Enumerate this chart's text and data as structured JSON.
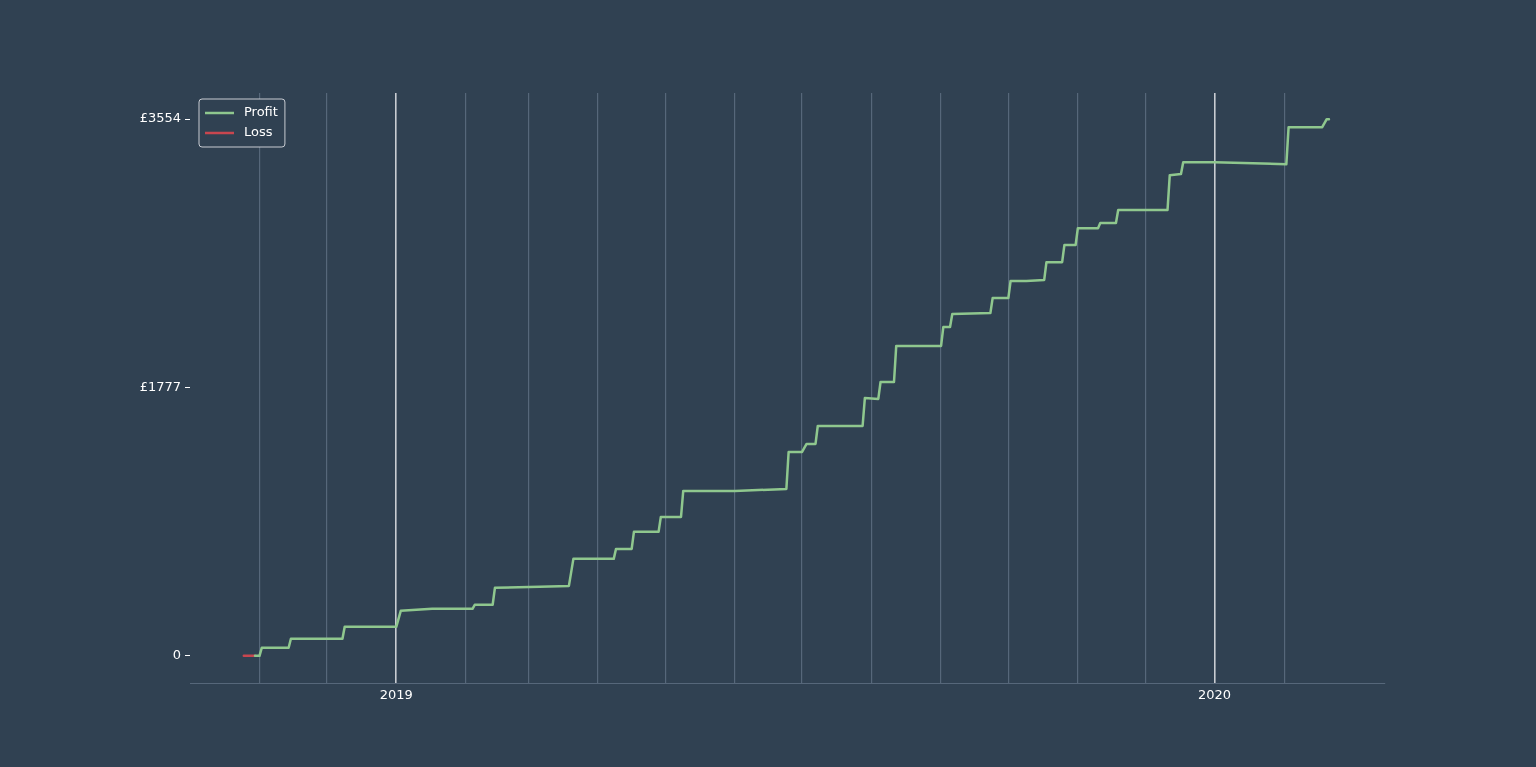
{
  "chart_data": {
    "type": "line",
    "xlim": [
      "2018-10-01",
      "2020-03-17"
    ],
    "xticks": [
      {
        "value": "2018-11-01",
        "label": null
      },
      {
        "value": "2018-12-01",
        "label": null
      },
      {
        "value": "2019-01-01",
        "label": "2019"
      },
      {
        "value": "2019-02-01",
        "label": null
      },
      {
        "value": "2019-03-01",
        "label": null
      },
      {
        "value": "2019-04-01",
        "label": null
      },
      {
        "value": "2019-05-01",
        "label": null
      },
      {
        "value": "2019-06-01",
        "label": null
      },
      {
        "value": "2019-07-01",
        "label": null
      },
      {
        "value": "2019-08-01",
        "label": null
      },
      {
        "value": "2019-09-01",
        "label": null
      },
      {
        "value": "2019-10-01",
        "label": null
      },
      {
        "value": "2019-11-01",
        "label": null
      },
      {
        "value": "2019-12-01",
        "label": null
      },
      {
        "value": "2020-01-01",
        "label": "2020"
      },
      {
        "value": "2020-02-01",
        "label": null
      }
    ],
    "ylim": [
      -180,
      3727
    ],
    "yticks": [
      {
        "value": 0,
        "label": "0"
      },
      {
        "value": 1777,
        "label": "£1777"
      },
      {
        "value": 3554,
        "label": "£3554"
      }
    ],
    "grid": "x",
    "legend": "top left",
    "marker": "none",
    "line_style": "solid",
    "series": [
      {
        "name": "Profit",
        "color": "#8fc78e",
        "x": [
          "2018-10-30",
          "2018-11-01",
          "2018-11-02",
          "2018-11-14",
          "2018-11-15",
          "2018-12-08",
          "2018-12-09",
          "2019-01-01",
          "2019-01-03",
          "2019-01-17",
          "2019-02-04",
          "2019-02-05",
          "2019-02-13",
          "2019-02-14",
          "2019-03-06",
          "2019-03-19",
          "2019-03-21",
          "2019-04-08",
          "2019-04-09",
          "2019-04-16",
          "2019-04-17",
          "2019-04-28",
          "2019-04-29",
          "2019-05-08",
          "2019-05-09",
          "2019-06-01",
          "2019-06-24",
          "2019-06-25",
          "2019-07-01",
          "2019-07-03",
          "2019-07-07",
          "2019-07-08",
          "2019-07-28",
          "2019-07-29",
          "2019-08-04",
          "2019-08-05",
          "2019-08-11",
          "2019-08-12",
          "2019-09-01",
          "2019-09-02",
          "2019-09-05",
          "2019-09-06",
          "2019-09-23",
          "2019-09-24",
          "2019-10-01",
          "2019-10-02",
          "2019-10-09",
          "2019-10-17",
          "2019-10-18",
          "2019-10-25",
          "2019-10-26",
          "2019-10-31",
          "2019-11-01",
          "2019-11-10",
          "2019-11-11",
          "2019-11-18",
          "2019-11-19",
          "2019-12-11",
          "2019-12-12",
          "2019-12-17",
          "2019-12-18",
          "2020-01-01",
          "2020-02-02",
          "2020-02-03",
          "2020-02-18",
          "2020-02-20",
          "2020-02-21"
        ],
        "values": [
          0,
          0,
          53,
          53,
          113,
          113,
          192,
          192,
          298,
          311,
          311,
          338,
          338,
          450,
          457,
          463,
          642,
          642,
          708,
          708,
          821,
          821,
          920,
          920,
          1092,
          1092,
          1105,
          1350,
          1350,
          1403,
          1403,
          1522,
          1522,
          1707,
          1701,
          1813,
          1813,
          2052,
          2052,
          2177,
          2177,
          2263,
          2270,
          2369,
          2369,
          2482,
          2482,
          2489,
          2607,
          2607,
          2720,
          2720,
          2832,
          2832,
          2866,
          2866,
          2952,
          2952,
          3183,
          3190,
          3269,
          3269,
          3256,
          3501,
          3501,
          3554,
          3554
        ]
      },
      {
        "name": "Loss",
        "color": "#c8464f",
        "x": [
          "2018-10-25",
          "2018-10-30"
        ],
        "values": [
          0,
          0
        ]
      }
    ]
  }
}
